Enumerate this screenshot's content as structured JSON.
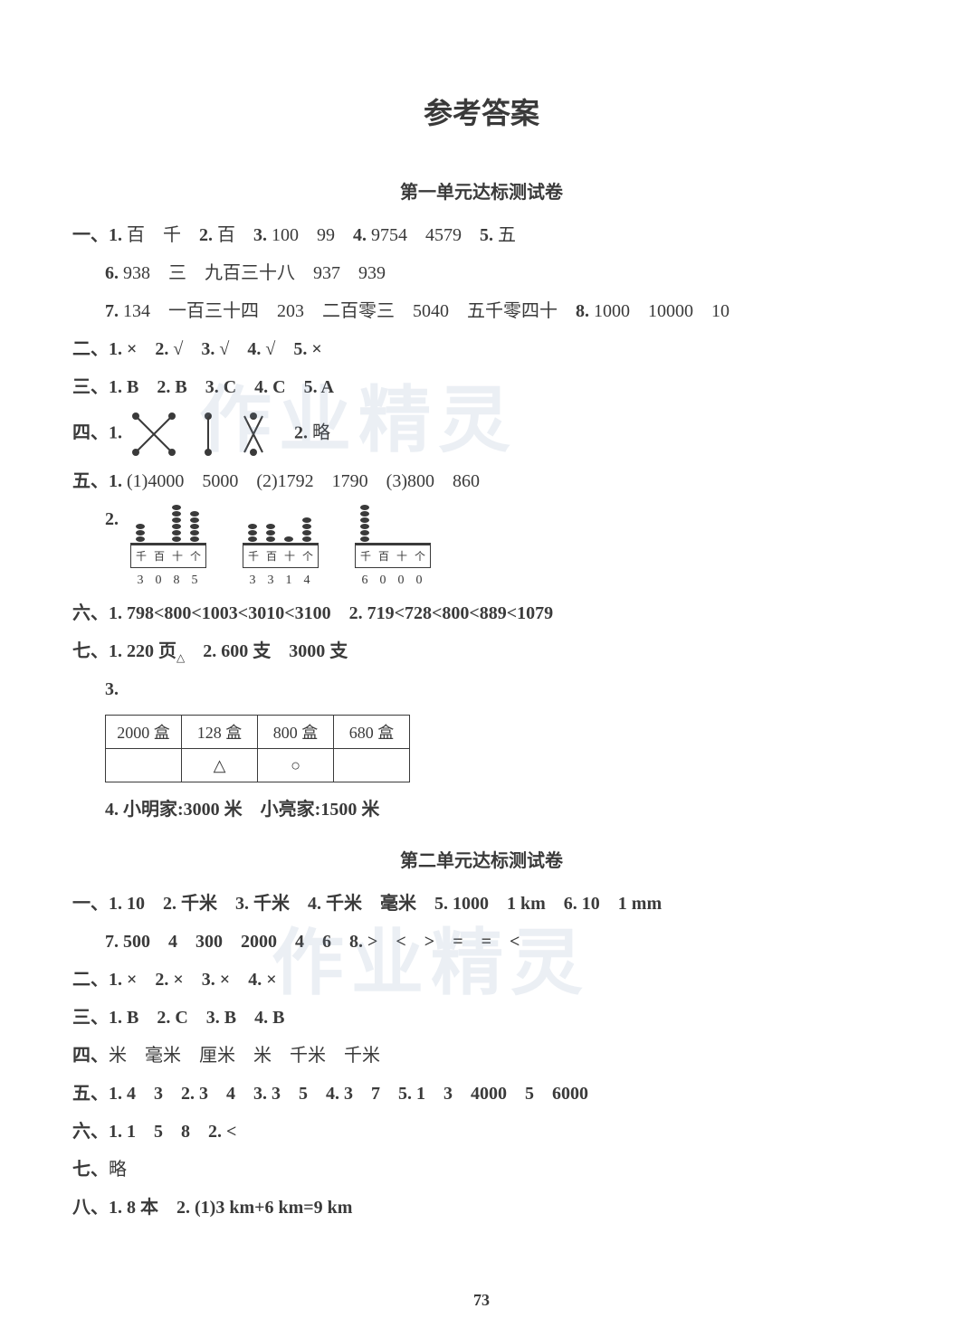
{
  "page_title": "参考答案",
  "page_number": "73",
  "watermark_text": "作业精灵",
  "unit1": {
    "title": "第一单元达标测试卷",
    "q1": {
      "label": "一、",
      "i1": {
        "n": "1.",
        "a": "百",
        "b": "千"
      },
      "i2": {
        "n": "2.",
        "a": "百"
      },
      "i3": {
        "n": "3.",
        "a": "100",
        "b": "99"
      },
      "i4": {
        "n": "4.",
        "a": "9754",
        "b": "4579"
      },
      "i5": {
        "n": "5.",
        "a": "五"
      },
      "i6": {
        "n": "6.",
        "a": "938",
        "b": "三",
        "c": "九百三十八",
        "d": "937",
        "e": "939"
      },
      "i7": {
        "n": "7.",
        "a": "134",
        "b": "一百三十四",
        "c": "203",
        "d": "二百零三",
        "e": "5040",
        "f": "五千零四十"
      },
      "i8": {
        "n": "8.",
        "a": "1000",
        "b": "10000",
        "c": "10"
      }
    },
    "q2": {
      "label": "二、",
      "a": [
        "1. ×",
        "2. √",
        "3. √",
        "4. √",
        "5. ×"
      ]
    },
    "q3": {
      "label": "三、",
      "a": [
        "1. B",
        "2. B",
        "3. C",
        "4. C",
        "5. A"
      ]
    },
    "q4": {
      "label": "四、",
      "n1": "1.",
      "n2": "2.",
      "a2": "略"
    },
    "q5": {
      "label": "五、",
      "i1": {
        "n": "1.",
        "p1": "(1)4000　5000",
        "p2": "(2)1792　1790",
        "p3": "(3)800　860"
      },
      "i2": {
        "n": "2."
      },
      "abacus": [
        {
          "labels": [
            "千",
            "百",
            "十",
            "个"
          ],
          "nums": [
            "3",
            "0",
            "8",
            "5"
          ],
          "beads": [
            3,
            0,
            8,
            5
          ]
        },
        {
          "labels": [
            "千",
            "百",
            "十",
            "个"
          ],
          "nums": [
            "3",
            "3",
            "1",
            "4"
          ],
          "beads": [
            3,
            3,
            1,
            4
          ]
        },
        {
          "labels": [
            "千",
            "百",
            "十",
            "个"
          ],
          "nums": [
            "6",
            "0",
            "0",
            "0"
          ],
          "beads": [
            6,
            0,
            0,
            0
          ]
        }
      ]
    },
    "q6": {
      "label": "六、",
      "i1": "1. 798<800<1003<3010<3100",
      "i2": "2. 719<728<800<889<1079"
    },
    "q7": {
      "label": "七、",
      "i1": "1. 220 页",
      "i1sub": "△",
      "i2": "2. 600 支　3000 支",
      "i3": "3.",
      "table": {
        "headers": [
          "2000 盒",
          "128 盒",
          "800 盒",
          "680 盒"
        ],
        "row": [
          "",
          "△",
          "○",
          ""
        ]
      },
      "i4": "4. 小明家:3000 米　小亮家:1500 米"
    }
  },
  "unit2": {
    "title": "第二单元达标测试卷",
    "q1": {
      "label": "一、",
      "line1": "1. 10　2. 千米　3. 千米　4. 千米　毫米　5. 1000　1 km　6. 10　1 mm",
      "line2": "7. 500　4　300　2000　4　6　8. >　<　>　=　=　<"
    },
    "q2": {
      "label": "二、",
      "a": "1. ×　2. ×　3. ×　4. ×"
    },
    "q3": {
      "label": "三、",
      "a": "1. B　2. C　3. B　4. B"
    },
    "q4": {
      "label": "四、",
      "a": "米　毫米　厘米　米　千米　千米"
    },
    "q5": {
      "label": "五、",
      "a": "1. 4　3　2. 3　4　3. 3　5　4. 3　7　5. 1　3　4000　5　6000"
    },
    "q6": {
      "label": "六、",
      "a": "1. 1　5　8　2. <"
    },
    "q7": {
      "label": "七、",
      "a": "略"
    },
    "q8": {
      "label": "八、",
      "a": "1. 8 本　2. (1)3 km+6 km=9 km"
    }
  }
}
